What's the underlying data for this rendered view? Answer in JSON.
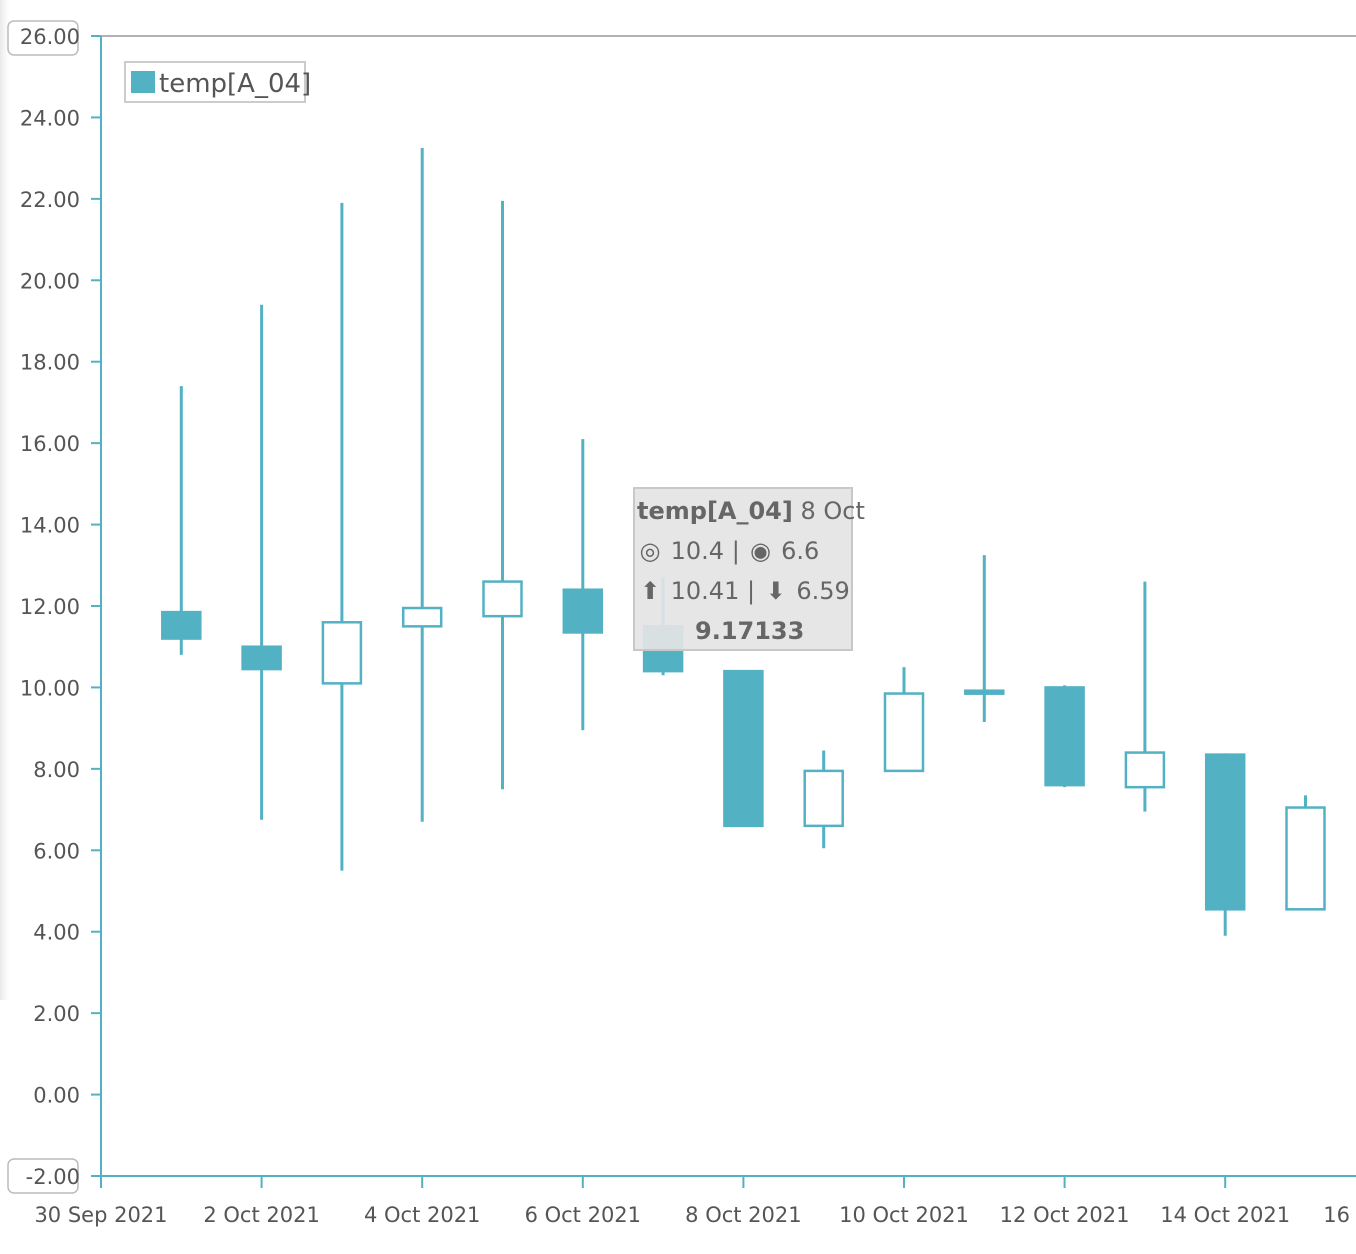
{
  "colors": {
    "series": "#53b1c4",
    "axis": "#53b1c4",
    "grid_top": "#999999",
    "text": "#555555",
    "tooltip_bg": "#e4e4e4"
  },
  "legend": {
    "label": "temp[A_04]"
  },
  "y_axis": {
    "labels": [
      "26.00",
      "24.00",
      "22.00",
      "20.00",
      "18.00",
      "16.00",
      "14.00",
      "12.00",
      "10.00",
      "8.00",
      "6.00",
      "4.00",
      "2.00",
      "0.00",
      "-2.00"
    ],
    "boxed_labels": [
      "26.00",
      "-2.00"
    ]
  },
  "x_axis": {
    "labels": [
      "30 Sep 2021",
      "2 Oct 2021",
      "4 Oct 2021",
      "6 Oct 2021",
      "8 Oct 2021",
      "10 Oct 2021",
      "12 Oct 2021",
      "14 Oct 2021",
      "16"
    ]
  },
  "tooltip": {
    "series": "temp[A_04]",
    "date": "8 Oct",
    "open_icon": "open-circle-icon",
    "open": "10.4",
    "separator": "|",
    "close_icon": "filled-circle-icon",
    "close": "6.6",
    "high_icon": "arrow-up-icon",
    "high": "10.41",
    "low_icon": "arrow-down-icon",
    "low": "6.59",
    "value": "9.17133"
  },
  "chart_data": {
    "type": "candlestick",
    "title": "",
    "xlabel": "",
    "ylabel": "",
    "ylim": [
      -2,
      26
    ],
    "x_range_days": [
      0,
      16
    ],
    "x_start_date": "30 Sep 2021",
    "series": [
      {
        "name": "temp[A_04]",
        "candles": [
          {
            "day": 1,
            "open": 11.85,
            "close": 11.2,
            "high": 17.4,
            "low": 10.8
          },
          {
            "day": 2,
            "open": 11.0,
            "close": 10.45,
            "high": 19.4,
            "low": 6.75
          },
          {
            "day": 3,
            "open": 10.1,
            "close": 11.6,
            "high": 21.9,
            "low": 5.5
          },
          {
            "day": 4,
            "open": 11.5,
            "close": 11.95,
            "high": 23.25,
            "low": 6.7
          },
          {
            "day": 5,
            "open": 11.75,
            "close": 12.6,
            "high": 21.95,
            "low": 7.5
          },
          {
            "day": 6,
            "open": 12.4,
            "close": 11.35,
            "high": 16.1,
            "low": 8.95
          },
          {
            "day": 7,
            "open": 11.5,
            "close": 10.4,
            "high": 12.7,
            "low": 10.3
          },
          {
            "day": 8,
            "open": 10.4,
            "close": 6.6,
            "high": 10.41,
            "low": 6.59
          },
          {
            "day": 9,
            "open": 6.6,
            "close": 7.95,
            "high": 8.45,
            "low": 6.05
          },
          {
            "day": 10,
            "open": 7.95,
            "close": 9.85,
            "high": 10.5,
            "low": 7.95
          },
          {
            "day": 11,
            "open": 9.92,
            "close": 9.85,
            "high": 13.25,
            "low": 9.15
          },
          {
            "day": 12,
            "open": 10.0,
            "close": 7.6,
            "high": 10.05,
            "low": 7.55
          },
          {
            "day": 13,
            "open": 7.55,
            "close": 8.4,
            "high": 12.6,
            "low": 6.95
          },
          {
            "day": 14,
            "open": 8.35,
            "close": 4.55,
            "high": 8.38,
            "low": 3.9
          },
          {
            "day": 15,
            "open": 4.55,
            "close": 7.05,
            "high": 7.35,
            "low": 4.55
          }
        ]
      }
    ]
  }
}
